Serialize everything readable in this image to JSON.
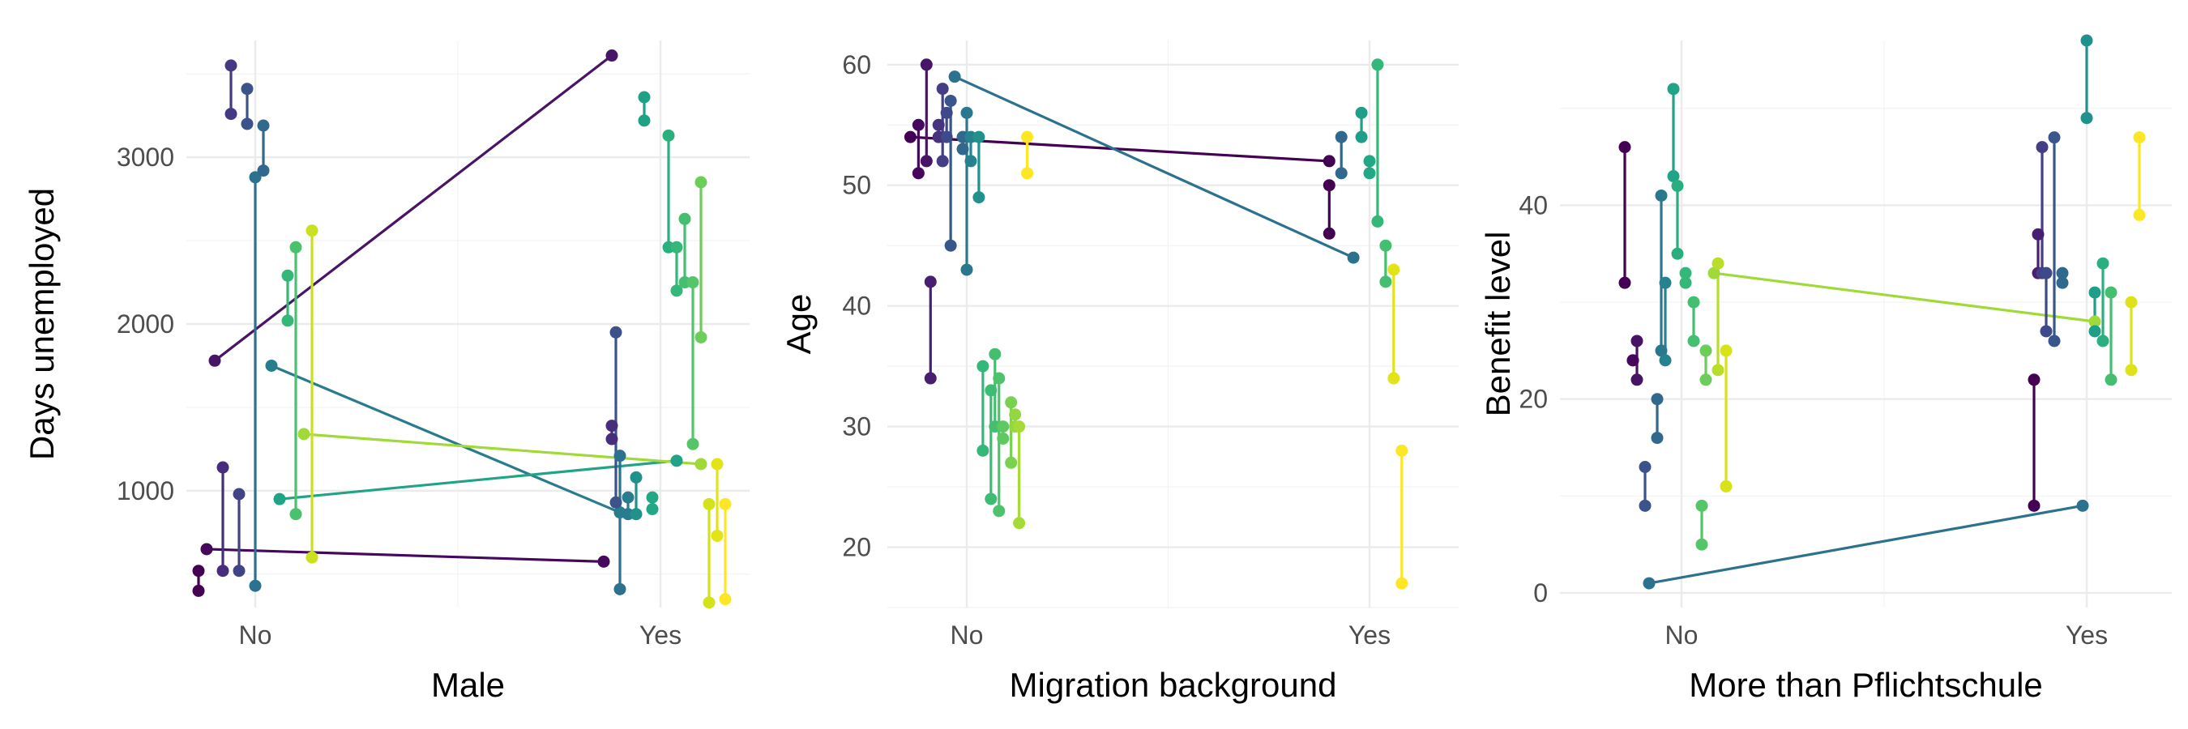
{
  "chart_data": [
    {
      "type": "scatter",
      "xlabel": "Male",
      "ylabel": "Days unemployed",
      "x_categories": [
        "No",
        "Yes"
      ],
      "ylim": [
        300,
        3700
      ],
      "yticks": [
        1000,
        2000,
        3000
      ],
      "y_labels": [
        "1000",
        "2000",
        "3000"
      ],
      "grid": true,
      "segments": [
        {
          "x1": -0.14,
          "y1": 400,
          "x2": -0.14,
          "y2": 520,
          "color": "#440154"
        },
        {
          "x1": -0.12,
          "y1": 650,
          "x2": 0.86,
          "y2": 575,
          "color": "#46085c"
        },
        {
          "x1": -0.1,
          "y1": 1780,
          "x2": 0.88,
          "y2": 3610,
          "color": "#481467"
        },
        {
          "x1": -0.08,
          "y1": 520,
          "x2": -0.08,
          "y2": 1140,
          "color": "#472d7b"
        },
        {
          "x1": -0.06,
          "y1": 3260,
          "x2": -0.06,
          "y2": 3550,
          "color": "#443983"
        },
        {
          "x1": -0.04,
          "y1": 520,
          "x2": -0.04,
          "y2": 980,
          "color": "#414487"
        },
        {
          "x1": -0.02,
          "y1": 3200,
          "x2": -0.02,
          "y2": 3410,
          "color": "#3b528b"
        },
        {
          "x1": 0.0,
          "y1": 430,
          "x2": 0.0,
          "y2": 2880,
          "color": "#2c728e"
        },
        {
          "x1": 0.02,
          "y1": 2920,
          "x2": 0.02,
          "y2": 3190,
          "color": "#31688e"
        },
        {
          "x1": 0.04,
          "y1": 1750,
          "x2": 0.9,
          "y2": 870,
          "color": "#287c8e"
        },
        {
          "x1": 0.06,
          "y1": 950,
          "x2": 1.04,
          "y2": 1180,
          "color": "#20a386"
        },
        {
          "x1": 0.08,
          "y1": 2020,
          "x2": 0.08,
          "y2": 2290,
          "color": "#35b779"
        },
        {
          "x1": 0.1,
          "y1": 860,
          "x2": 0.1,
          "y2": 2460,
          "color": "#4ac16d"
        },
        {
          "x1": 0.12,
          "y1": 1340,
          "x2": 1.1,
          "y2": 1160,
          "color": "#a0da39"
        },
        {
          "x1": 0.14,
          "y1": 600,
          "x2": 0.14,
          "y2": 2560,
          "color": "#cae11f"
        },
        {
          "x1": 0.88,
          "y1": 1310,
          "x2": 0.88,
          "y2": 1390,
          "color": "#472d7b"
        },
        {
          "x1": 0.89,
          "y1": 930,
          "x2": 0.89,
          "y2": 1950,
          "color": "#3b528b"
        },
        {
          "x1": 0.9,
          "y1": 1210,
          "x2": 0.9,
          "y2": 410,
          "color": "#2c728e"
        },
        {
          "x1": 0.92,
          "y1": 860,
          "x2": 0.92,
          "y2": 960,
          "color": "#287c8e"
        },
        {
          "x1": 0.94,
          "y1": 860,
          "x2": 0.94,
          "y2": 1080,
          "color": "#21918c"
        },
        {
          "x1": 0.96,
          "y1": 3220,
          "x2": 0.96,
          "y2": 3360,
          "color": "#1fa188"
        },
        {
          "x1": 0.98,
          "y1": 890,
          "x2": 0.98,
          "y2": 960,
          "color": "#22a884"
        },
        {
          "x1": 1.02,
          "y1": 2460,
          "x2": 1.02,
          "y2": 3130,
          "color": "#2ab07f"
        },
        {
          "x1": 1.04,
          "y1": 2200,
          "x2": 1.04,
          "y2": 2460,
          "color": "#35b779"
        },
        {
          "x1": 1.06,
          "y1": 2250,
          "x2": 1.06,
          "y2": 2630,
          "color": "#44bf70"
        },
        {
          "x1": 1.08,
          "y1": 1280,
          "x2": 1.08,
          "y2": 2250,
          "color": "#54c568"
        },
        {
          "x1": 1.1,
          "y1": 1920,
          "x2": 1.1,
          "y2": 2850,
          "color": "#6ccd5a"
        },
        {
          "x1": 1.12,
          "y1": 330,
          "x2": 1.12,
          "y2": 920,
          "color": "#d2e21b"
        },
        {
          "x1": 1.14,
          "y1": 730,
          "x2": 1.14,
          "y2": 1160,
          "color": "#e2e418"
        },
        {
          "x1": 1.16,
          "y1": 350,
          "x2": 1.16,
          "y2": 920,
          "color": "#fde725"
        }
      ]
    },
    {
      "type": "scatter",
      "xlabel": "Migration background",
      "ylabel": "Age",
      "x_categories": [
        "No",
        "Yes"
      ],
      "ylim": [
        15,
        62
      ],
      "yticks": [
        20,
        30,
        40,
        50,
        60
      ],
      "y_labels": [
        "20",
        "30",
        "40",
        "50",
        "60"
      ],
      "grid": true,
      "segments": [
        {
          "x1": -0.14,
          "y1": 54,
          "x2": 0.9,
          "y2": 52,
          "color": "#440154"
        },
        {
          "x1": -0.12,
          "y1": 51,
          "x2": -0.12,
          "y2": 55,
          "color": "#46085c"
        },
        {
          "x1": -0.1,
          "y1": 52,
          "x2": -0.1,
          "y2": 60,
          "color": "#481467"
        },
        {
          "x1": -0.09,
          "y1": 34,
          "x2": -0.09,
          "y2": 42,
          "color": "#481f70"
        },
        {
          "x1": -0.07,
          "y1": 54,
          "x2": -0.07,
          "y2": 55,
          "color": "#46337e"
        },
        {
          "x1": -0.06,
          "y1": 52,
          "x2": -0.06,
          "y2": 58,
          "color": "#433e85"
        },
        {
          "x1": -0.05,
          "y1": 54,
          "x2": -0.05,
          "y2": 56,
          "color": "#3e4989"
        },
        {
          "x1": -0.04,
          "y1": 45,
          "x2": -0.04,
          "y2": 57,
          "color": "#39568c"
        },
        {
          "x1": -0.03,
          "y1": 59,
          "x2": 0.96,
          "y2": 44,
          "color": "#2c728e"
        },
        {
          "x1": -0.01,
          "y1": 53,
          "x2": -0.01,
          "y2": 54,
          "color": "#31688e"
        },
        {
          "x1": 0.0,
          "y1": 43,
          "x2": 0.0,
          "y2": 56,
          "color": "#2a788e"
        },
        {
          "x1": 0.01,
          "y1": 52,
          "x2": 0.01,
          "y2": 54,
          "color": "#26828e"
        },
        {
          "x1": 0.03,
          "y1": 49,
          "x2": 0.03,
          "y2": 54,
          "color": "#21918c"
        },
        {
          "x1": 0.04,
          "y1": 28,
          "x2": 0.04,
          "y2": 35,
          "color": "#35b779"
        },
        {
          "x1": 0.06,
          "y1": 24,
          "x2": 0.06,
          "y2": 33,
          "color": "#3dbc74"
        },
        {
          "x1": 0.07,
          "y1": 30,
          "x2": 0.07,
          "y2": 36,
          "color": "#44bf70"
        },
        {
          "x1": 0.08,
          "y1": 23,
          "x2": 0.08,
          "y2": 34,
          "color": "#4ec36b"
        },
        {
          "x1": 0.09,
          "y1": 29,
          "x2": 0.09,
          "y2": 30,
          "color": "#5ec962"
        },
        {
          "x1": 0.11,
          "y1": 27,
          "x2": 0.11,
          "y2": 32,
          "color": "#7ad151"
        },
        {
          "x1": 0.12,
          "y1": 30,
          "x2": 0.12,
          "y2": 31,
          "color": "#93d741"
        },
        {
          "x1": 0.13,
          "y1": 22,
          "x2": 0.13,
          "y2": 30,
          "color": "#a5db36"
        },
        {
          "x1": 0.15,
          "y1": 51,
          "x2": 0.15,
          "y2": 54,
          "color": "#fde725"
        },
        {
          "x1": 0.9,
          "y1": 46,
          "x2": 0.9,
          "y2": 50,
          "color": "#440154"
        },
        {
          "x1": 0.93,
          "y1": 51,
          "x2": 0.93,
          "y2": 54,
          "color": "#31688e"
        },
        {
          "x1": 0.98,
          "y1": 54,
          "x2": 0.98,
          "y2": 56,
          "color": "#1f9e89"
        },
        {
          "x1": 1.0,
          "y1": 51,
          "x2": 1.0,
          "y2": 52,
          "color": "#22a884"
        },
        {
          "x1": 1.02,
          "y1": 47,
          "x2": 1.02,
          "y2": 60,
          "color": "#35b779"
        },
        {
          "x1": 1.04,
          "y1": 42,
          "x2": 1.04,
          "y2": 45,
          "color": "#44bf70"
        },
        {
          "x1": 1.06,
          "y1": 34,
          "x2": 1.06,
          "y2": 43,
          "color": "#e2e418"
        },
        {
          "x1": 1.08,
          "y1": 17,
          "x2": 1.08,
          "y2": 28,
          "color": "#fde725"
        }
      ]
    },
    {
      "type": "scatter",
      "xlabel": "More than Pflichtschule",
      "ylabel": "Benefit level",
      "x_categories": [
        "No",
        "Yes"
      ],
      "ylim": [
        -1.5,
        57
      ],
      "yticks": [
        0,
        20,
        40
      ],
      "y_labels": [
        "0",
        "20",
        "40"
      ],
      "grid": true,
      "segments": [
        {
          "x1": -0.14,
          "y1": 32,
          "x2": -0.14,
          "y2": 46,
          "color": "#440154"
        },
        {
          "x1": -0.12,
          "y1": 24,
          "x2": -0.12,
          "y2": 24,
          "color": "#46085c"
        },
        {
          "x1": -0.11,
          "y1": 22,
          "x2": -0.11,
          "y2": 26,
          "color": "#471365"
        },
        {
          "x1": -0.09,
          "y1": 9,
          "x2": -0.09,
          "y2": 13,
          "color": "#3b528b"
        },
        {
          "x1": -0.08,
          "y1": 1,
          "x2": 0.99,
          "y2": 9,
          "color": "#2c728e"
        },
        {
          "x1": -0.06,
          "y1": 16,
          "x2": -0.06,
          "y2": 20,
          "color": "#31688e"
        },
        {
          "x1": -0.05,
          "y1": 25,
          "x2": -0.05,
          "y2": 41,
          "color": "#2a788e"
        },
        {
          "x1": -0.04,
          "y1": 24,
          "x2": -0.04,
          "y2": 32,
          "color": "#26828e"
        },
        {
          "x1": -0.02,
          "y1": 43,
          "x2": -0.02,
          "y2": 52,
          "color": "#20a386"
        },
        {
          "x1": -0.01,
          "y1": 35,
          "x2": -0.01,
          "y2": 42,
          "color": "#29af7f"
        },
        {
          "x1": 0.01,
          "y1": 32,
          "x2": 0.01,
          "y2": 33,
          "color": "#35b779"
        },
        {
          "x1": 0.03,
          "y1": 26,
          "x2": 0.03,
          "y2": 30,
          "color": "#44bf70"
        },
        {
          "x1": 0.05,
          "y1": 5,
          "x2": 0.05,
          "y2": 9,
          "color": "#54c568"
        },
        {
          "x1": 0.06,
          "y1": 22,
          "x2": 0.06,
          "y2": 25,
          "color": "#6ccd5a"
        },
        {
          "x1": 0.08,
          "y1": 33,
          "x2": 1.02,
          "y2": 28,
          "color": "#a0da39"
        },
        {
          "x1": 0.09,
          "y1": 23,
          "x2": 0.09,
          "y2": 34,
          "color": "#b8de29"
        },
        {
          "x1": 0.11,
          "y1": 11,
          "x2": 0.11,
          "y2": 25,
          "color": "#d8e219"
        },
        {
          "x1": 0.87,
          "y1": 9,
          "x2": 0.87,
          "y2": 22,
          "color": "#440154"
        },
        {
          "x1": 0.88,
          "y1": 33,
          "x2": 0.88,
          "y2": 37,
          "color": "#481f70"
        },
        {
          "x1": 0.89,
          "y1": 33,
          "x2": 0.89,
          "y2": 46,
          "color": "#433e85"
        },
        {
          "x1": 0.9,
          "y1": 27,
          "x2": 0.9,
          "y2": 33,
          "color": "#3e4989"
        },
        {
          "x1": 0.92,
          "y1": 26,
          "x2": 0.92,
          "y2": 47,
          "color": "#39568c"
        },
        {
          "x1": 0.94,
          "y1": 32,
          "x2": 0.94,
          "y2": 33,
          "color": "#31688e"
        },
        {
          "x1": 1.0,
          "y1": 49,
          "x2": 1.0,
          "y2": 57,
          "color": "#21918c"
        },
        {
          "x1": 1.02,
          "y1": 27,
          "x2": 1.02,
          "y2": 31,
          "color": "#1f9e89"
        },
        {
          "x1": 1.04,
          "y1": 26,
          "x2": 1.04,
          "y2": 34,
          "color": "#2ab07f"
        },
        {
          "x1": 1.06,
          "y1": 22,
          "x2": 1.06,
          "y2": 31,
          "color": "#44bf70"
        },
        {
          "x1": 1.11,
          "y1": 23,
          "x2": 1.11,
          "y2": 30,
          "color": "#dde318"
        },
        {
          "x1": 1.13,
          "y1": 39,
          "x2": 1.13,
          "y2": 47,
          "color": "#fde725"
        }
      ]
    }
  ]
}
